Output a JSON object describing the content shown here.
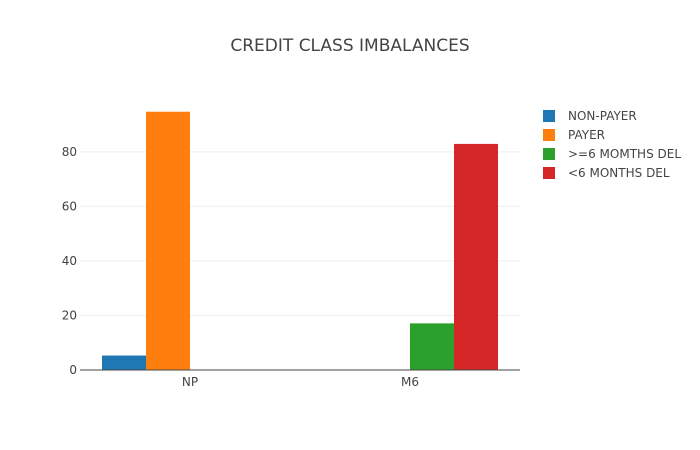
{
  "chart_data": {
    "type": "bar",
    "title": "CREDIT CLASS IMBALANCES",
    "xlabel": "",
    "ylabel": "",
    "categories": [
      "NP",
      "M6"
    ],
    "yticks": [
      0,
      20,
      40,
      60,
      80
    ],
    "ylim": [
      0,
      99
    ],
    "grid": true,
    "legend_position": "right",
    "series": [
      {
        "name": "NON-PAYER",
        "color": "#1f77b4",
        "values": [
          5.3,
          0
        ]
      },
      {
        "name": "PAYER",
        "color": "#ff7f0e",
        "values": [
          94.7,
          0
        ]
      },
      {
        "name": ">=6 MOMTHS DEL",
        "color": "#2ca02c",
        "values": [
          0,
          17.1
        ]
      },
      {
        "name": "<6 MONTHS DEL",
        "color": "#d62728",
        "values": [
          0,
          82.9
        ]
      }
    ]
  }
}
